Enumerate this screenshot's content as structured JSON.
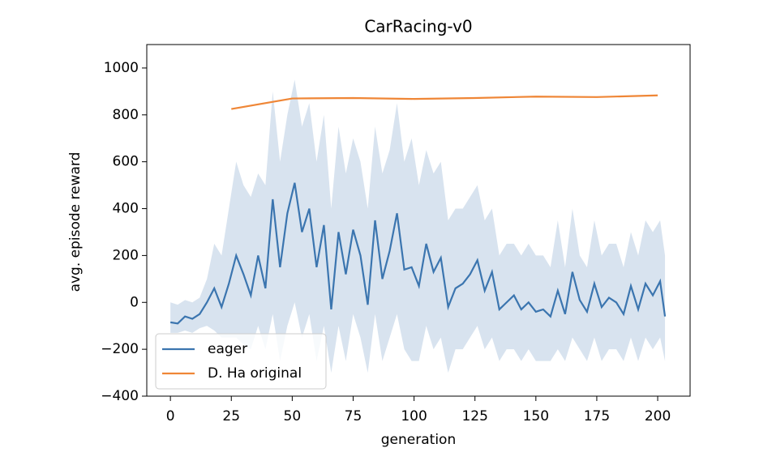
{
  "chart_data": {
    "type": "line",
    "title": "CarRacing-v0",
    "x_label": "generation",
    "y_label": "avg. episode reward",
    "xlim": [
      -9.7,
      213.3
    ],
    "ylim": [
      -400,
      1100
    ],
    "xticks": [
      0,
      25,
      50,
      75,
      100,
      125,
      150,
      175,
      200
    ],
    "yticks": [
      {
        "value": -400,
        "label": "−400"
      },
      {
        "value": -200,
        "label": "−200"
      },
      0,
      200,
      400,
      600,
      800,
      1000
    ],
    "legend": "lower left",
    "series": [
      {
        "name": "eager",
        "color": "#3b75af",
        "x": [
          0,
          3,
          6,
          9,
          12,
          15,
          18,
          21,
          24,
          27,
          30,
          33,
          36,
          39,
          42,
          45,
          48,
          51,
          54,
          57,
          60,
          63,
          66,
          69,
          72,
          75,
          78,
          81,
          84,
          87,
          90,
          93,
          96,
          99,
          102,
          105,
          108,
          111,
          114,
          117,
          120,
          123,
          126,
          129,
          132,
          135,
          138,
          141,
          144,
          147,
          150,
          153,
          156,
          159,
          162,
          165,
          168,
          171,
          174,
          177,
          180,
          183,
          186,
          189,
          192,
          195,
          198,
          201,
          203
        ],
        "values": [
          -85,
          -90,
          -60,
          -70,
          -50,
          0,
          60,
          -20,
          80,
          200,
          120,
          30,
          200,
          60,
          440,
          150,
          380,
          510,
          300,
          400,
          150,
          330,
          -30,
          300,
          120,
          310,
          200,
          -10,
          350,
          100,
          220,
          380,
          140,
          150,
          70,
          250,
          130,
          190,
          -20,
          60,
          80,
          120,
          180,
          50,
          130,
          -30,
          0,
          30,
          -30,
          0,
          -40,
          -30,
          -60,
          50,
          -50,
          130,
          10,
          -40,
          80,
          -20,
          20,
          0,
          -50,
          70,
          -30,
          80,
          30,
          90,
          -60
        ],
        "band": {
          "upper": [
            0,
            -10,
            10,
            0,
            20,
            100,
            250,
            200,
            400,
            600,
            500,
            450,
            550,
            500,
            900,
            600,
            800,
            950,
            750,
            850,
            600,
            800,
            400,
            750,
            550,
            700,
            600,
            400,
            750,
            550,
            650,
            850,
            600,
            700,
            500,
            650,
            550,
            600,
            350,
            400,
            400,
            450,
            500,
            350,
            400,
            200,
            250,
            250,
            200,
            250,
            200,
            200,
            150,
            350,
            150,
            400,
            200,
            150,
            350,
            200,
            250,
            250,
            150,
            300,
            200,
            350,
            300,
            350,
            200
          ],
          "lower": [
            -130,
            -130,
            -120,
            -130,
            -110,
            -100,
            -120,
            -150,
            -150,
            -150,
            -180,
            -200,
            -100,
            -200,
            -50,
            -250,
            -100,
            0,
            -150,
            -50,
            -250,
            -100,
            -300,
            -100,
            -250,
            -50,
            -150,
            -300,
            -50,
            -250,
            -150,
            -50,
            -200,
            -250,
            -250,
            -100,
            -200,
            -150,
            -300,
            -200,
            -200,
            -150,
            -100,
            -200,
            -150,
            -250,
            -200,
            -200,
            -250,
            -200,
            -250,
            -250,
            -250,
            -200,
            -250,
            -150,
            -200,
            -250,
            -150,
            -250,
            -200,
            -200,
            -250,
            -150,
            -250,
            -150,
            -200,
            -150,
            -250
          ]
        }
      },
      {
        "name": "D. Ha original",
        "color": "#ef8636",
        "x": [
          25,
          50,
          75,
          100,
          125,
          150,
          175,
          200
        ],
        "values": [
          825,
          870,
          872,
          868,
          872,
          878,
          876,
          883
        ]
      }
    ]
  }
}
